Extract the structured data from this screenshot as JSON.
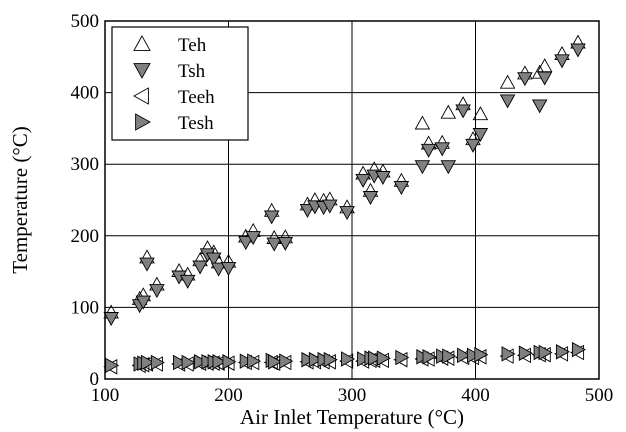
{
  "chart_data": {
    "type": "scatter",
    "title": "",
    "xlabel": "Air Inlet Temperature (°C)",
    "ylabel": "Temperature (°C)",
    "xlim": [
      100,
      500
    ],
    "ylim": [
      0,
      500
    ],
    "xticks": [
      100,
      200,
      300,
      400,
      500
    ],
    "yticks": [
      0,
      100,
      200,
      300,
      400,
      500
    ],
    "grid": true,
    "legend_position": "top-left",
    "series": [
      {
        "name": "Teh",
        "marker": "triangle-up",
        "fill": "none",
        "x": [
          105,
          128,
          131,
          134,
          142,
          160,
          167,
          177,
          183,
          188,
          192,
          200,
          214,
          220,
          235,
          237,
          246,
          264,
          270,
          277,
          282,
          296,
          309,
          315,
          318,
          325,
          340,
          357,
          362,
          373,
          378,
          390,
          398,
          404,
          426,
          440,
          452,
          456,
          470,
          483
        ],
        "y": [
          93,
          112,
          117,
          170,
          132,
          151,
          146,
          166,
          183,
          177,
          163,
          164,
          199,
          207,
          235,
          197,
          198,
          244,
          250,
          249,
          251,
          240,
          287,
          263,
          293,
          290,
          277,
          357,
          329,
          330,
          372,
          384,
          335,
          370,
          414,
          427,
          428,
          437,
          454,
          470
        ]
      },
      {
        "name": "Tsh",
        "marker": "triangle-down",
        "fill": "#808080",
        "x": [
          105,
          128,
          131,
          134,
          142,
          160,
          167,
          177,
          183,
          188,
          192,
          200,
          214,
          220,
          235,
          237,
          246,
          264,
          270,
          277,
          282,
          296,
          309,
          315,
          318,
          325,
          340,
          357,
          362,
          373,
          378,
          390,
          398,
          404,
          426,
          440,
          452,
          456,
          470,
          483
        ],
        "y": [
          85,
          103,
          108,
          161,
          124,
          143,
          137,
          157,
          174,
          168,
          154,
          155,
          191,
          198,
          227,
          189,
          190,
          236,
          241,
          240,
          242,
          233,
          278,
          254,
          284,
          282,
          268,
          297,
          320,
          322,
          297,
          375,
          327,
          342,
          389,
          420,
          382,
          421,
          445,
          460
        ]
      },
      {
        "name": "Teeh",
        "marker": "triangle-left",
        "fill": "none",
        "x": [
          105,
          128,
          131,
          134,
          142,
          160,
          167,
          177,
          183,
          188,
          192,
          200,
          214,
          220,
          235,
          237,
          246,
          264,
          270,
          277,
          282,
          296,
          309,
          315,
          318,
          325,
          340,
          357,
          362,
          373,
          378,
          390,
          398,
          404,
          426,
          440,
          452,
          456,
          470,
          483
        ],
        "y": [
          17,
          19,
          20,
          21,
          21,
          21,
          21,
          22,
          22,
          22,
          22,
          22,
          23,
          23,
          23,
          22,
          23,
          24,
          24,
          24,
          24,
          25,
          25,
          26,
          26,
          26,
          27,
          28,
          28,
          29,
          29,
          30,
          30,
          31,
          32,
          33,
          34,
          34,
          35,
          37
        ]
      },
      {
        "name": "Tesh",
        "marker": "triangle-right",
        "fill": "#808080",
        "x": [
          105,
          128,
          131,
          134,
          142,
          160,
          167,
          177,
          183,
          188,
          192,
          200,
          214,
          220,
          235,
          237,
          246,
          264,
          270,
          277,
          282,
          296,
          309,
          315,
          318,
          325,
          340,
          357,
          362,
          373,
          378,
          390,
          398,
          404,
          426,
          440,
          452,
          456,
          470,
          483
        ],
        "y": [
          19,
          21,
          22,
          23,
          23,
          23,
          23,
          24,
          24,
          24,
          24,
          24,
          25,
          25,
          26,
          24,
          25,
          27,
          27,
          27,
          27,
          28,
          28,
          29,
          29,
          29,
          30,
          31,
          31,
          32,
          32,
          33,
          33,
          34,
          35,
          36,
          37,
          37,
          38,
          41
        ]
      }
    ]
  }
}
